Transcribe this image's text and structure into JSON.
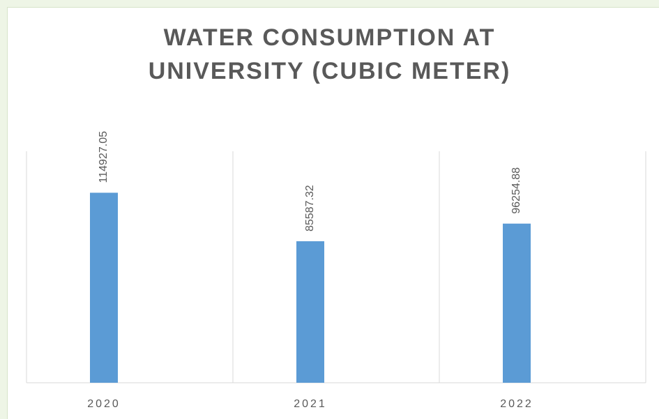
{
  "chart_data": {
    "type": "bar",
    "title": "WATER CONSUMPTION AT UNIVERSITY (CUBIC METER)",
    "categories": [
      "2020",
      "2021",
      "2022"
    ],
    "values": [
      114927.05,
      85587.32,
      96254.88
    ],
    "color": "#5b9bd5",
    "ylim": [
      0,
      140000
    ]
  }
}
